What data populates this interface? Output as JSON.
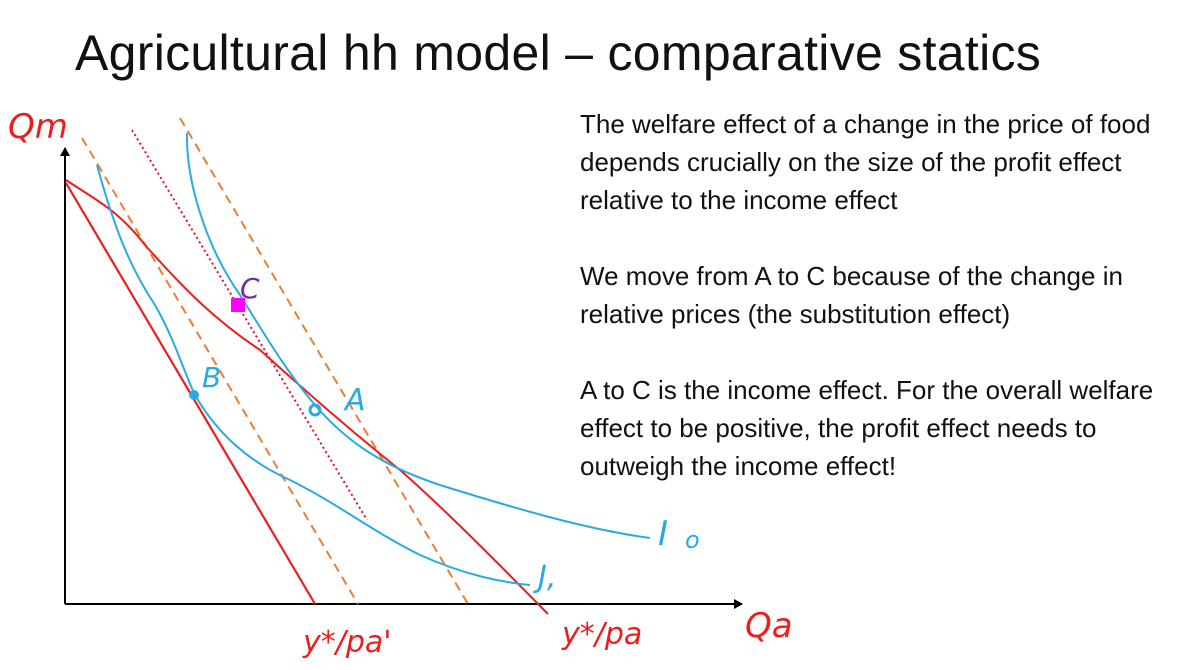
{
  "slide": {
    "title": "Agricultural hh model – comparative statics"
  },
  "diagram": {
    "labels": {
      "y_axis": "Qm",
      "x_axis": "Qa",
      "point_a": "A",
      "point_b": "B",
      "point_c": "C",
      "curve_i0": "I",
      "curve_i0_subscript": "o",
      "curve_i1": "J,",
      "budget_new": "y*/pa'",
      "budget_old": "y*/pa"
    },
    "colors": {
      "budget_lines": "#ee1c1c",
      "indifference_curves": "#29abe2",
      "dashed_lines": "#ed7d31",
      "point_c_marker": "#ff00ff",
      "point_c_label": "#7030a0",
      "axes": "#000000"
    }
  },
  "text": {
    "paragraphs": [
      "The welfare effect of a change in the price of food depends crucially on the size of the profit effect relative to the income effect",
      "We move from A to C because of the change in relative prices (the substitution effect)",
      "A to C is the income effect. For the overall welfare effect to be positive, the profit effect needs to outweigh the income effect!"
    ]
  }
}
